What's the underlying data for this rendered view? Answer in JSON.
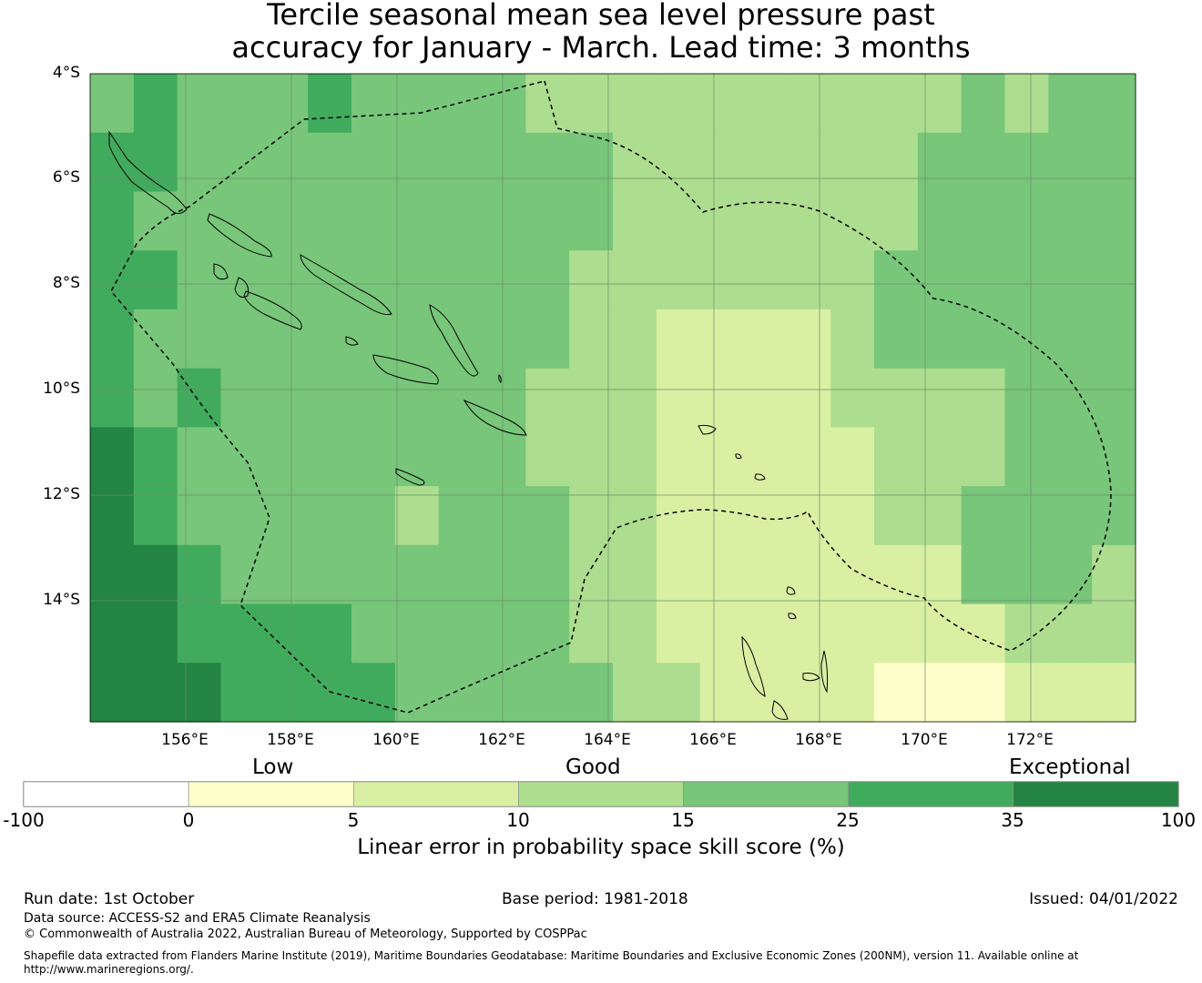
{
  "title": {
    "line1": "Tercile seasonal mean sea level pressure past",
    "line2": "accuracy for January - March. Lead time: 3 months"
  },
  "map": {
    "lat_labels": [
      "4°S",
      "6°S",
      "8°S",
      "10°S",
      "12°S",
      "14°S"
    ],
    "lon_labels": [
      "156°E",
      "158°E",
      "160°E",
      "162°E",
      "164°E",
      "166°E",
      "168°E",
      "170°E",
      "172°E"
    ],
    "colors": {
      "neg": "#ffffff",
      "c0_5": "#ffffcc",
      "c5_10": "#d9f0a3",
      "c10_15": "#addd8e",
      "c15_25": "#78c679",
      "c25_35": "#41ab5d",
      "c35_100": "#238443"
    },
    "grid_color": "#6a8f6a",
    "boundary_style": "dashed"
  },
  "colorbar": {
    "category_labels": [
      "Low",
      "Good",
      "Exceptional"
    ],
    "ticks": [
      "-100",
      "0",
      "5",
      "10",
      "15",
      "25",
      "35",
      "100"
    ],
    "colors": [
      "#ffffff",
      "#ffffcc",
      "#d9f0a3",
      "#addd8e",
      "#78c679",
      "#41ab5d",
      "#238443"
    ],
    "label": "Linear error in probability space skill score (%)"
  },
  "footer": {
    "run_date": "Run date: 1st October",
    "base_period": "Base period: 1981-2018",
    "issued": "Issued: 04/01/2022",
    "data_source": "Data source: ACCESS-S2 and ERA5 Climate Reanalysis",
    "copyright": "© Commonwealth of Australia 2022, Australian Bureau of Meteorology, Supported by COSPPac",
    "shapefile_line1": "Shapefile data extracted from Flanders Marine Institute (2019), Maritime Boundaries Geodatabase: Maritime Boundaries and Exclusive Economic Zones (200NM), version 11. Available online at",
    "shapefile_line2": "http://www.marineregions.org/."
  }
}
